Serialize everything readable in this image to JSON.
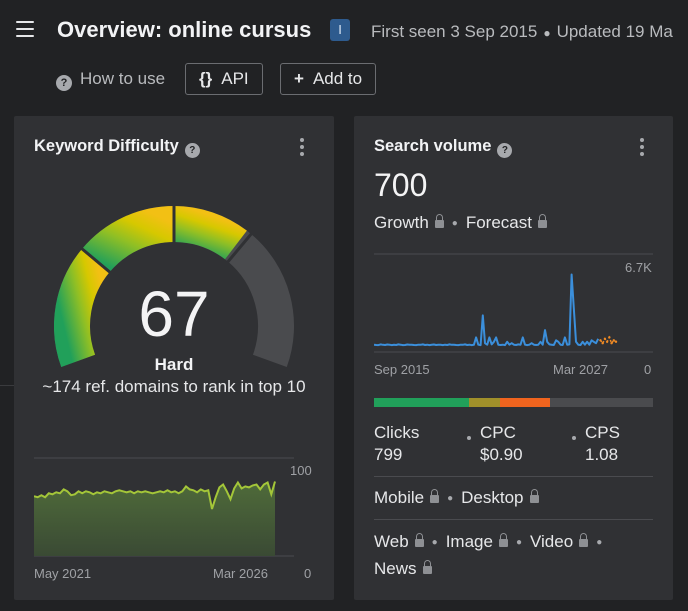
{
  "header": {
    "title": "Overview: online cursus",
    "intent_badge": "I",
    "first_seen": "First seen 3 Sep 2015",
    "updated": "Updated 19 Ma"
  },
  "toolbar": {
    "help_label": "How to use",
    "api_label": "API",
    "api_icon": "{}",
    "add_label": "Add to",
    "add_icon": "+"
  },
  "kd_card": {
    "title": "Keyword Difficulty",
    "score": "67",
    "score_value": 67,
    "level": "Hard",
    "description": "~174 ref. domains to rank in top 10",
    "gauge_colors": [
      "#21a05a",
      "#8fbf25",
      "#d6c800",
      "#f2c014",
      "#4a4b4e"
    ]
  },
  "kd_trend": {
    "chart_data": {
      "type": "area",
      "x_start": "May 2021",
      "x_end": "Mar 2026",
      "ylim": [
        0,
        100
      ],
      "y_max_label": "100",
      "y_min_label": "0",
      "values": [
        61,
        60,
        62,
        60,
        64,
        63,
        65,
        64,
        68,
        66,
        62,
        63,
        66,
        64,
        66,
        65,
        63,
        65,
        64,
        66,
        65,
        64,
        66,
        67,
        66,
        65,
        66,
        64,
        66,
        65,
        66,
        65,
        64,
        65,
        66,
        65,
        67,
        65,
        66,
        64,
        66,
        71,
        68,
        67,
        65,
        68,
        66,
        67,
        48,
        60,
        70,
        73,
        66,
        58,
        69,
        75,
        69,
        71,
        70,
        72,
        73,
        68,
        73,
        75,
        63,
        76
      ],
      "color": "#a4c639"
    }
  },
  "sv_card": {
    "title": "Search volume",
    "value": "700",
    "growth_label": "Growth",
    "forecast_label": "Forecast",
    "chart_data": {
      "type": "line",
      "x_start": "Sep 2015",
      "x_end": "Mar 2027",
      "y_max_label": "6.7K",
      "y_min_label": "0",
      "ylim": [
        0,
        6700
      ],
      "values": [
        500,
        480,
        470,
        520,
        490,
        480,
        510,
        500,
        470,
        490,
        480,
        520,
        500,
        470,
        480,
        510,
        490,
        500,
        480,
        470,
        500,
        490,
        520,
        480,
        500,
        470,
        490,
        510,
        480,
        500,
        490,
        470,
        500,
        480,
        520,
        490,
        500,
        480,
        470,
        500,
        490,
        520,
        480,
        500,
        470,
        490,
        1000,
        500,
        470,
        2500,
        600,
        500,
        1000,
        520,
        700,
        1000,
        500,
        480,
        500,
        470,
        700,
        500,
        600,
        500,
        480,
        520,
        500,
        1000,
        500,
        470,
        500,
        600,
        500,
        480,
        500,
        700,
        500,
        1500,
        700,
        520,
        500,
        480,
        800,
        700,
        500,
        480,
        1000,
        500,
        520,
        5300,
        3000,
        700,
        500,
        480,
        700,
        500,
        700,
        500,
        800,
        700,
        600,
        900
      ],
      "forecast_values": [
        800,
        600,
        900,
        700,
        1000,
        600,
        800,
        700
      ],
      "color": "#3b8fdb",
      "forecast_color": "#f08a24"
    },
    "intent_distribution": [
      {
        "color": "#21a05a",
        "share": 34
      },
      {
        "color": "#a0902a",
        "share": 11
      },
      {
        "color": "#f0641e",
        "share": 18
      },
      {
        "color": "#4a4b4e",
        "share": 37
      }
    ],
    "clicks_label": "Clicks",
    "clicks_value": "799",
    "cpc_label": "CPC",
    "cpc_value": "$0.90",
    "cps_label": "CPS",
    "cps_value": "1.08",
    "mobile_label": "Mobile",
    "desktop_label": "Desktop",
    "web_label": "Web",
    "image_label": "Image",
    "video_label": "Video",
    "news_label": "News"
  }
}
